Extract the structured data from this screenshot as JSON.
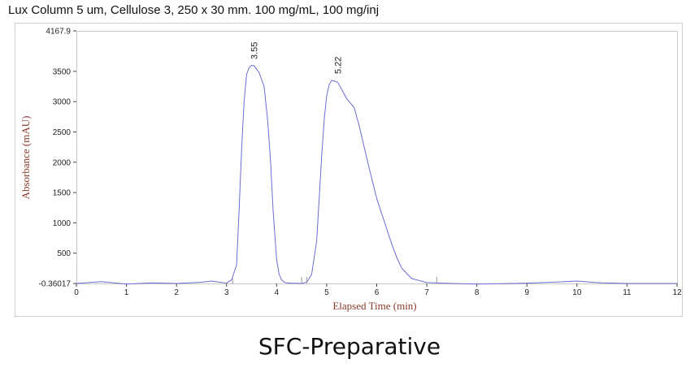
{
  "header": {
    "title": "Lux Column 5 um, Cellulose 3, 250 x 30 mm. 100 mg/mL, 100 mg/inj"
  },
  "caption": "SFC-Preparative",
  "chart_data": {
    "type": "line",
    "title": "Lux Column 5 um, Cellulose 3, 250 x 30 mm. 100 mg/mL, 100 mg/inj",
    "xlabel": "Elapsed Time (min)",
    "ylabel": "Absorbance (mAU)",
    "xlim": [
      0,
      12
    ],
    "ylim": [
      -0.36017,
      4167.9
    ],
    "x_ticks": [
      0,
      1,
      2,
      3,
      4,
      5,
      6,
      7,
      8,
      9,
      10,
      11,
      12
    ],
    "y_ticks": [
      -0.36017,
      500,
      1000,
      1500,
      2000,
      2500,
      3000,
      3500,
      4167.9
    ],
    "y_tick_labels": [
      "-0.36017",
      "500",
      "1000",
      "1500",
      "2000",
      "2500",
      "3000",
      "3500",
      "4167.9"
    ],
    "grid": false,
    "line_color": "#6b6bd6",
    "axis_title_color": "#8b3a2a",
    "peaks": [
      {
        "label": "3.55",
        "x": 3.55,
        "y": 3590
      },
      {
        "label": "5.22",
        "x": 5.22,
        "y": 3350
      }
    ],
    "series": [
      {
        "x": [
          0,
          0.5,
          1.0,
          1.5,
          2.0,
          2.5,
          2.7,
          3.0,
          3.1,
          3.2,
          3.25,
          3.3,
          3.35,
          3.4,
          3.45,
          3.5,
          3.55,
          3.65,
          3.75,
          3.82,
          3.88,
          3.93,
          4.0,
          4.05,
          4.1,
          4.15,
          4.2,
          4.3,
          4.5,
          4.6,
          4.7,
          4.8,
          4.85,
          4.9,
          4.95,
          5.0,
          5.05,
          5.1,
          5.15,
          5.22,
          5.3,
          5.4,
          5.5,
          5.55,
          5.65,
          5.75,
          5.85,
          6.0,
          6.1,
          6.2,
          6.3,
          6.4,
          6.5,
          6.7,
          7.0,
          7.5,
          8.0,
          9.0,
          9.5,
          10.0,
          10.3,
          10.5,
          11.0,
          12.0
        ],
        "y": [
          0,
          30,
          -10,
          10,
          0,
          20,
          40,
          5,
          60,
          300,
          1200,
          2200,
          3000,
          3450,
          3560,
          3600,
          3590,
          3480,
          3250,
          2700,
          2000,
          1200,
          400,
          150,
          60,
          20,
          10,
          5,
          0,
          20,
          150,
          700,
          1400,
          2100,
          2700,
          3100,
          3280,
          3350,
          3340,
          3320,
          3200,
          3050,
          2950,
          2900,
          2600,
          2250,
          1900,
          1400,
          1150,
          900,
          650,
          430,
          250,
          80,
          15,
          0,
          -10,
          5,
          20,
          40,
          20,
          10,
          0,
          0
        ]
      }
    ]
  }
}
